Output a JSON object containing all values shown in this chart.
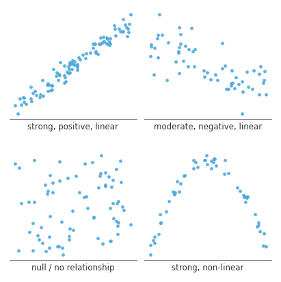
{
  "dot_color": "#4EA8DE",
  "dot_size": 12,
  "alpha": 0.9,
  "labels": [
    "strong, positive, linear",
    "moderate, negative, linear",
    "null / no relationship",
    "strong, non-linear"
  ],
  "background_color": "#ffffff",
  "label_fontsize": 8.5,
  "n_strong": 100,
  "n_moderate": 60,
  "n_null": 75,
  "n_nonlinear": 55
}
